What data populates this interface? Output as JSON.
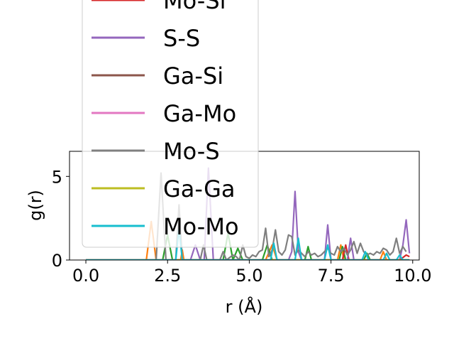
{
  "chart_data": {
    "type": "line",
    "xlabel": "r (Å)",
    "ylabel": "g(r)",
    "xlim": [
      -0.5,
      10.2
    ],
    "ylim": [
      0,
      6.5
    ],
    "xticks": [
      0.0,
      2.5,
      5.0,
      7.5,
      10.0
    ],
    "xtick_labels": [
      "0.0",
      "2.5",
      "5.0",
      "7.5",
      "10.0"
    ],
    "yticks": [
      0,
      5
    ],
    "ytick_labels": [
      "0",
      "5"
    ],
    "grid": false,
    "legend_position": "upper-left, extending above the plot",
    "series": [
      {
        "name": "",
        "color": "#1f77b4",
        "x": [
          0,
          9.9
        ],
        "y": [
          0,
          0
        ]
      },
      {
        "name": "",
        "color": "#ff7f0e",
        "x": [
          0,
          1.85,
          2.0,
          2.15,
          2.9,
          2.95,
          3.0,
          5.5,
          5.7,
          5.85,
          7.7,
          7.8,
          7.9,
          9.0,
          9.1,
          9.2,
          9.9
        ],
        "y": [
          0,
          0,
          2.3,
          0,
          0,
          0.6,
          0,
          0,
          0.9,
          0,
          0,
          0.9,
          0,
          0,
          0.5,
          0,
          0
        ]
      },
      {
        "name": "",
        "color": "#2ca02c",
        "x": [
          0,
          2.35,
          2.5,
          2.65,
          4.2,
          4.35,
          4.5,
          4.65,
          4.8,
          5.4,
          5.55,
          5.7,
          6.7,
          6.8,
          6.9,
          7.75,
          7.85,
          7.95,
          8.5,
          8.6,
          8.7,
          9.9
        ],
        "y": [
          0,
          0,
          1.5,
          0,
          0,
          1.6,
          0,
          0.7,
          0,
          0,
          0.9,
          0,
          0,
          0.8,
          0,
          0,
          0.8,
          0,
          0,
          0.4,
          0,
          0
        ]
      },
      {
        "name": "Mo-Si",
        "color": "#d62728",
        "x": [
          0,
          7.85,
          7.95,
          8.05,
          9.6,
          9.8,
          9.9
        ],
        "y": [
          0,
          0,
          0.9,
          0,
          0,
          0.3,
          0.2
        ]
      },
      {
        "name": "S-S",
        "color": "#9467bd",
        "x": [
          0,
          3.2,
          3.35,
          3.5,
          3.62,
          3.75,
          3.9,
          6.2,
          6.3,
          6.4,
          6.5,
          6.6,
          7.3,
          7.4,
          7.5,
          8.0,
          8.1,
          8.2,
          9.6,
          9.7,
          9.8,
          9.9
        ],
        "y": [
          0,
          0,
          0.9,
          0,
          0,
          5.5,
          0,
          0,
          0.5,
          4.1,
          0.5,
          0,
          0,
          2.1,
          0,
          0,
          1.3,
          0,
          0,
          0.9,
          2.4,
          0.4
        ]
      },
      {
        "name": "Ga-Si",
        "color": "#8c564b",
        "x": [
          0,
          9.9
        ],
        "y": [
          0,
          0
        ]
      },
      {
        "name": "Ga-Mo",
        "color": "#e377c2",
        "x": [
          0,
          9.9
        ],
        "y": [
          0,
          0
        ]
      },
      {
        "name": "Mo-S",
        "color": "#7f7f7f",
        "x": [
          0,
          2.15,
          2.3,
          2.45,
          2.75,
          2.85,
          2.95,
          3.5,
          3.6,
          3.7,
          4.1,
          4.2,
          4.3,
          4.5,
          4.6,
          4.7,
          4.8,
          4.9,
          5.0,
          5.1,
          5.2,
          5.3,
          5.4,
          5.5,
          5.6,
          5.7,
          5.8,
          5.9,
          6.0,
          6.1,
          6.2,
          6.3,
          6.4,
          6.5,
          6.6,
          6.7,
          6.8,
          6.9,
          7.0,
          7.1,
          7.2,
          7.4,
          7.5,
          7.6,
          7.7,
          7.8,
          7.9,
          8.0,
          8.1,
          8.2,
          8.3,
          8.4,
          8.5,
          8.6,
          8.7,
          8.8,
          8.9,
          9.0,
          9.1,
          9.2,
          9.3,
          9.4,
          9.5,
          9.6,
          9.7,
          9.8
        ],
        "y": [
          0,
          0,
          5.2,
          0,
          0,
          3.3,
          0,
          0,
          0.9,
          0,
          0,
          0.5,
          0,
          0.3,
          0.2,
          0,
          0.9,
          0.2,
          0.1,
          0.3,
          0.2,
          0.5,
          0.6,
          1.9,
          0.2,
          0.6,
          1.8,
          0.5,
          0.3,
          0.6,
          1.5,
          1.4,
          0.3,
          0.6,
          0.4,
          0.2,
          0.5,
          0.3,
          0.4,
          0.2,
          0.3,
          0.7,
          0.4,
          0.3,
          0.8,
          0.5,
          0.7,
          0.3,
          0.6,
          1.1,
          0.4,
          1.0,
          0.5,
          0.3,
          0.4,
          0.3,
          0.5,
          0.4,
          0.7,
          0.6,
          0.3,
          0.5,
          1.3,
          0.4,
          0.8,
          0.5
        ]
      },
      {
        "name": "Ga-Ga",
        "color": "#bcbd22",
        "x": [
          0,
          9.9
        ],
        "y": [
          0,
          0
        ]
      },
      {
        "name": "Mo-Mo",
        "color": "#17becf",
        "x": [
          0,
          2.75,
          2.85,
          2.95,
          5.65,
          5.75,
          5.85,
          6.4,
          6.5,
          6.6,
          7.3,
          7.4,
          7.5,
          8.45,
          8.55,
          8.65,
          9.1,
          9.2,
          9.3,
          9.5,
          9.6,
          9.7,
          9.9
        ],
        "y": [
          0,
          0,
          1.9,
          0,
          0,
          1.0,
          0,
          0,
          1.3,
          0,
          0,
          0.9,
          0,
          0,
          0.5,
          0,
          0,
          0.4,
          0,
          0,
          0.3,
          0,
          0
        ]
      }
    ],
    "legend_entries": [
      {
        "label": "Mo-Si",
        "color": "#d62728"
      },
      {
        "label": "S-S",
        "color": "#9467bd"
      },
      {
        "label": "Ga-Si",
        "color": "#8c564b"
      },
      {
        "label": "Ga-Mo",
        "color": "#e377c2"
      },
      {
        "label": "Mo-S",
        "color": "#7f7f7f"
      },
      {
        "label": "Ga-Ga",
        "color": "#bcbd22"
      },
      {
        "label": "Mo-Mo",
        "color": "#17becf"
      }
    ]
  }
}
